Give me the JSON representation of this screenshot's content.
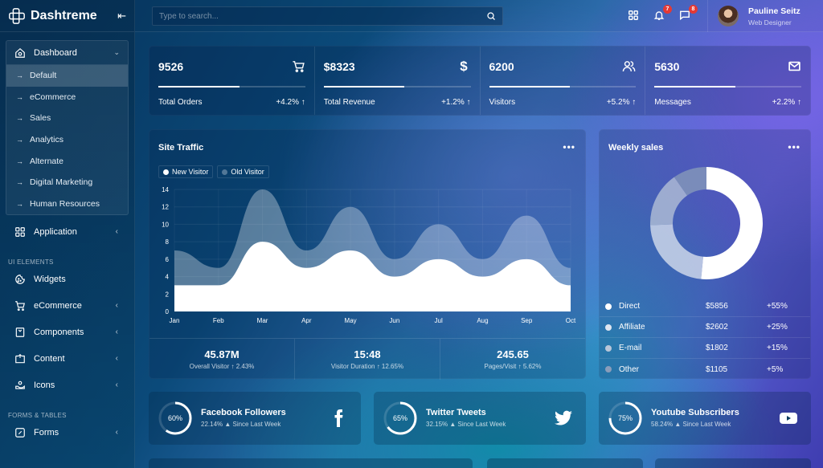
{
  "app": {
    "name": "Dashtreme"
  },
  "sidebar": {
    "dashboard_group": {
      "label": "Dashboard",
      "items": [
        {
          "label": "Default",
          "active": true
        },
        {
          "label": "eCommerce"
        },
        {
          "label": "Sales"
        },
        {
          "label": "Analytics"
        },
        {
          "label": "Alternate"
        },
        {
          "label": "Digital Marketing"
        },
        {
          "label": "Human Resources"
        }
      ]
    },
    "application": {
      "label": "Application"
    },
    "section_ui": "UI ELEMENTS",
    "ui_items": [
      {
        "label": "Widgets",
        "icon": "cookie-icon",
        "has_children": false
      },
      {
        "label": "eCommerce",
        "icon": "cart-icon",
        "has_children": true
      },
      {
        "label": "Components",
        "icon": "bookmark-icon",
        "has_children": true
      },
      {
        "label": "Content",
        "icon": "content-icon",
        "has_children": true
      },
      {
        "label": "Icons",
        "icon": "hand-icon",
        "has_children": true
      }
    ],
    "section_forms": "FORMS & TABLES",
    "forms_items": [
      {
        "label": "Forms",
        "icon": "edit-icon",
        "has_children": true
      }
    ]
  },
  "topbar": {
    "search_placeholder": "Type to search...",
    "notifications_count": "7",
    "messages_count": "8",
    "user": {
      "name": "Pauline Seitz",
      "role": "Web Designer"
    }
  },
  "stats": [
    {
      "value": "9526",
      "label": "Total Orders",
      "change": "+4.2%",
      "progress": 55,
      "icon": "cart-icon"
    },
    {
      "value": "$8323",
      "label": "Total Revenue",
      "change": "+1.2%",
      "progress": 55,
      "icon": "dollar-icon"
    },
    {
      "value": "6200",
      "label": "Visitors",
      "change": "+5.2%",
      "progress": 55,
      "icon": "users-icon"
    },
    {
      "value": "5630",
      "label": "Messages",
      "change": "+2.2%",
      "progress": 55,
      "icon": "mail-icon"
    }
  ],
  "site_traffic": {
    "title": "Site Traffic",
    "legend": [
      "New Visitor",
      "Old Visitor"
    ],
    "footer": [
      {
        "value": "45.87M",
        "label": "Overall Visitor",
        "change": "2.43%"
      },
      {
        "value": "15:48",
        "label": "Visitor Duration",
        "change": "12.65%"
      },
      {
        "value": "245.65",
        "label": "Pages/Visit",
        "change": "5.62%"
      }
    ]
  },
  "weekly_sales": {
    "title": "Weekly sales",
    "rows": [
      {
        "name": "Direct",
        "amount": "$5856",
        "change": "+55%",
        "color": "#ffffff"
      },
      {
        "name": "Affiliate",
        "amount": "$2602",
        "change": "+25%",
        "color": "#dfe6f0"
      },
      {
        "name": "E-mail",
        "amount": "$1802",
        "change": "+15%",
        "color": "#b9c6d8"
      },
      {
        "name": "Other",
        "amount": "$1105",
        "change": "+5%",
        "color": "#8a9dba"
      }
    ]
  },
  "social": [
    {
      "title": "Facebook Followers",
      "sub": "22.14% ▲ Since Last Week",
      "percent": 60,
      "pct_label": "60%",
      "icon": "facebook-icon"
    },
    {
      "title": "Twitter Tweets",
      "sub": "32.15% ▲ Since Last Week",
      "percent": 65,
      "pct_label": "65%",
      "icon": "twitter-icon"
    },
    {
      "title": "Youtube Subscribers",
      "sub": "58.24% ▲ Since Last Week",
      "percent": 75,
      "pct_label": "75%",
      "icon": "youtube-icon"
    }
  ],
  "chart_data": [
    {
      "type": "area",
      "title": "Site Traffic",
      "categories": [
        "Jan",
        "Feb",
        "Mar",
        "Apr",
        "May",
        "Jun",
        "Jul",
        "Aug",
        "Sep",
        "Oct"
      ],
      "series": [
        {
          "name": "New Visitor",
          "values": [
            3,
            3,
            8,
            5,
            7,
            4,
            6,
            4,
            6,
            3
          ]
        },
        {
          "name": "Old Visitor",
          "values": [
            7,
            5,
            14,
            7,
            12,
            6,
            10,
            6,
            11,
            5
          ]
        }
      ],
      "ylim": [
        0,
        14
      ],
      "yticks": [
        0,
        2,
        4,
        6,
        8,
        10,
        12,
        14
      ],
      "grid": true,
      "legend_position": "top-left"
    },
    {
      "type": "pie",
      "title": "Weekly sales",
      "categories": [
        "Direct",
        "Affiliate",
        "E-mail",
        "Other"
      ],
      "values": [
        5856,
        2602,
        1802,
        1105
      ],
      "donut": true
    }
  ]
}
